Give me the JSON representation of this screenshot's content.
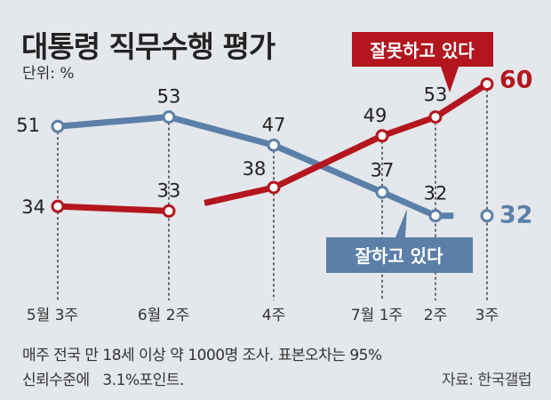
{
  "chart_data": {
    "type": "line",
    "title": "대통령 직무수행 평가",
    "unit_label": "단위: %",
    "categories": [
      "5월 3주",
      "6월 2주",
      "4주",
      "7월 1주",
      "2주",
      "3주"
    ],
    "series": [
      {
        "name": "잘하고 있다",
        "color": "#5b7fa8",
        "values": [
          51,
          53,
          47,
          37,
          32,
          32
        ]
      },
      {
        "name": "잘못하고 있다",
        "color": "#b3161e",
        "values": [
          34,
          33,
          38,
          49,
          53,
          60
        ]
      }
    ],
    "ylim": [
      0,
      70
    ],
    "grid": false,
    "legend": "callouts"
  },
  "footnote_line1": "매주 전국 만 18세 이상 약 1000명 조사. 표본오차는 95%",
  "footnote_line2": "신뢰수준에   3.1%포인트.",
  "source": "자료: 한국갤럽"
}
